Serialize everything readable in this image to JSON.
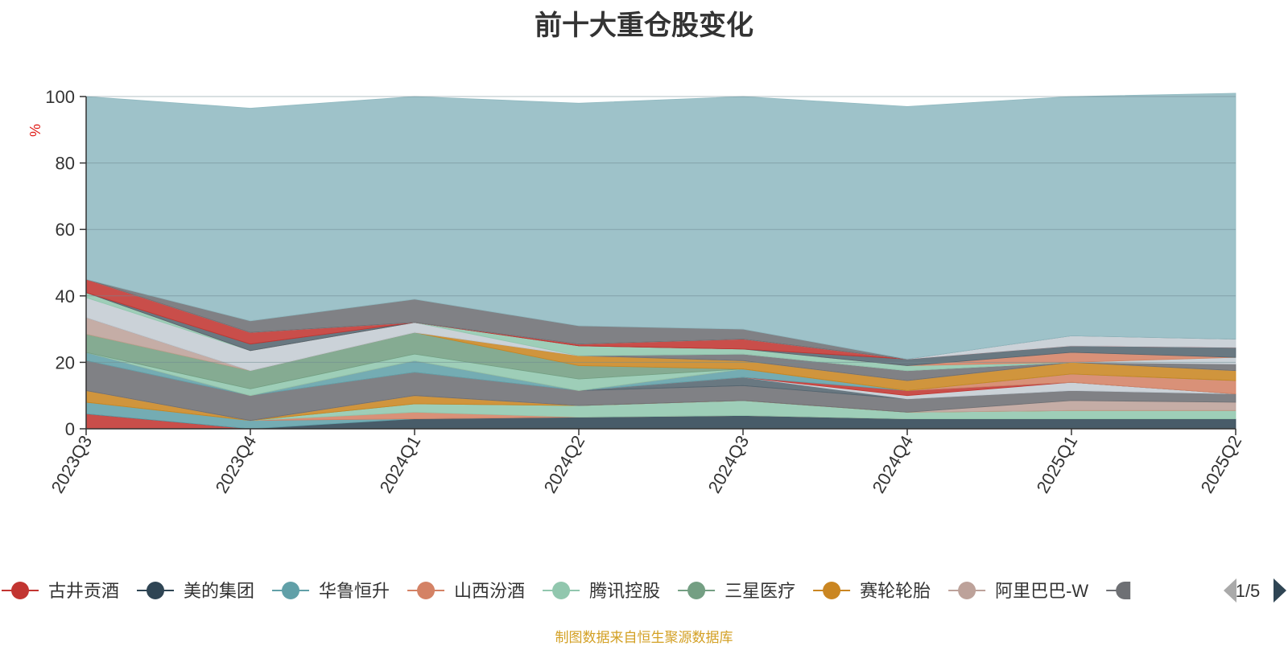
{
  "title": "前十大重仓股变化",
  "footer": "制图数据来自恒生聚源数据库",
  "chart_data": {
    "type": "area",
    "stacked": true,
    "ylabel": "%",
    "ylim": [
      0,
      100
    ],
    "yticks": [
      0,
      20,
      40,
      60,
      80,
      100
    ],
    "grid": true,
    "categories": [
      "2023Q3",
      "2023Q4",
      "2024Q1",
      "2024Q2",
      "2024Q3",
      "2024Q4",
      "2025Q1",
      "2025Q2"
    ],
    "series": [
      {
        "name": "古井贡酒",
        "color": "#c23531",
        "values": [
          4.5,
          0,
          0,
          0,
          0,
          0,
          0,
          0
        ]
      },
      {
        "name": "美的集团",
        "color": "#2f4554",
        "values": [
          0,
          0,
          3,
          3.5,
          4,
          3,
          3,
          3
        ]
      },
      {
        "name": "华鲁恒升",
        "color": "#61a0a8",
        "values": [
          3.5,
          2.5,
          0,
          0,
          0,
          0,
          0,
          0
        ]
      },
      {
        "name": "山西汾酒",
        "color": "#d48265",
        "values": [
          0,
          0,
          2,
          0,
          0,
          0,
          0,
          0
        ]
      },
      {
        "name": "腾讯控股",
        "color": "#91c7ae",
        "values": [
          0,
          0,
          2.5,
          3.5,
          4.5,
          2,
          2.5,
          2.5
        ]
      },
      {
        "name": "三星医疗",
        "color": "#749f83",
        "values": [
          0,
          0,
          0,
          0,
          0,
          0,
          0,
          0
        ]
      },
      {
        "name": "赛轮轮胎",
        "color": "#ca8622",
        "values": [
          3.5,
          0,
          2.5,
          0,
          0,
          0,
          0,
          0
        ]
      },
      {
        "name": "阿里巴巴-W",
        "color": "#bda29a",
        "values": [
          0,
          0,
          0,
          0,
          0,
          0,
          3,
          2.5
        ]
      },
      {
        "name": "",
        "color": "#6e7074",
        "values": [
          9,
          7.5,
          7,
          4.5,
          4.5,
          4,
          3,
          2.5
        ]
      },
      {
        "name": "",
        "color": "#546570",
        "values": [
          0,
          0,
          0,
          0,
          2.5,
          0,
          0,
          0
        ]
      },
      {
        "name": "",
        "color": "#c4ccd3",
        "values": [
          0,
          0,
          0,
          0,
          0,
          1,
          2.5,
          0
        ]
      },
      {
        "name": "",
        "color": "#c23531",
        "values": [
          0,
          0,
          0,
          0,
          0,
          1.5,
          0,
          0
        ]
      },
      {
        "name": "",
        "color": "#61a0a8",
        "values": [
          2.5,
          0,
          3.5,
          0,
          2.5,
          0,
          0,
          0
        ]
      },
      {
        "name": "",
        "color": "#d48265",
        "values": [
          0,
          0,
          0,
          0,
          0,
          0,
          2.5,
          4
        ]
      },
      {
        "name": "",
        "color": "#91c7ae",
        "values": [
          0,
          2,
          2,
          3.5,
          0,
          0,
          0,
          0
        ]
      },
      {
        "name": "",
        "color": "#749f83",
        "values": [
          5.5,
          5.5,
          6.5,
          4,
          0,
          0,
          0,
          0
        ]
      },
      {
        "name": "",
        "color": "#ca8622",
        "values": [
          0,
          0,
          0,
          3,
          2.5,
          3,
          3.5,
          3
        ]
      },
      {
        "name": "",
        "color": "#bda29a",
        "values": [
          5,
          0,
          0,
          0,
          0,
          0,
          0,
          0
        ]
      },
      {
        "name": "",
        "color": "#6e7074",
        "values": [
          0,
          0,
          0,
          0,
          2,
          3,
          0,
          2
        ]
      },
      {
        "name": "",
        "color": "#c4ccd3",
        "values": [
          6,
          6,
          3,
          0,
          0,
          0,
          0,
          2
        ]
      },
      {
        "name": "",
        "color": "#91c7ae",
        "values": [
          1.5,
          0,
          0,
          3,
          1.5,
          1.5,
          0,
          0
        ]
      },
      {
        "name": "",
        "color": "#d48265",
        "values": [
          0,
          0,
          0,
          0,
          0,
          0,
          3,
          0
        ]
      },
      {
        "name": "",
        "color": "#546570",
        "values": [
          0,
          2,
          0,
          0,
          0,
          2,
          2,
          3
        ]
      },
      {
        "name": "",
        "color": "#c23531",
        "values": [
          4,
          3.5,
          0,
          0.5,
          3,
          0,
          0,
          0
        ]
      },
      {
        "name": "",
        "color": "#c4ccd3",
        "values": [
          0,
          0,
          0,
          0,
          0,
          0,
          3,
          2.5
        ]
      },
      {
        "name": "",
        "color": "#6e7074",
        "values": [
          0,
          3.5,
          7,
          5.5,
          3,
          0,
          0,
          0
        ]
      },
      {
        "name": "",
        "color": "#91bac1",
        "values": [
          55,
          64,
          61,
          67,
          70,
          76,
          72,
          74
        ]
      }
    ],
    "legend": {
      "position": "bottom",
      "visible_items": [
        "古井贡酒",
        "美的集团",
        "华鲁恒升",
        "山西汾酒",
        "腾讯控股",
        "三星医疗",
        "赛轮轮胎",
        "阿里巴巴-W"
      ],
      "colors": [
        "#c23531",
        "#2f4554",
        "#61a0a8",
        "#d48265",
        "#91c7ae",
        "#749f83",
        "#ca8622",
        "#bda29a"
      ],
      "truncated_item_color": "#6e7074",
      "page": "1/5"
    }
  }
}
